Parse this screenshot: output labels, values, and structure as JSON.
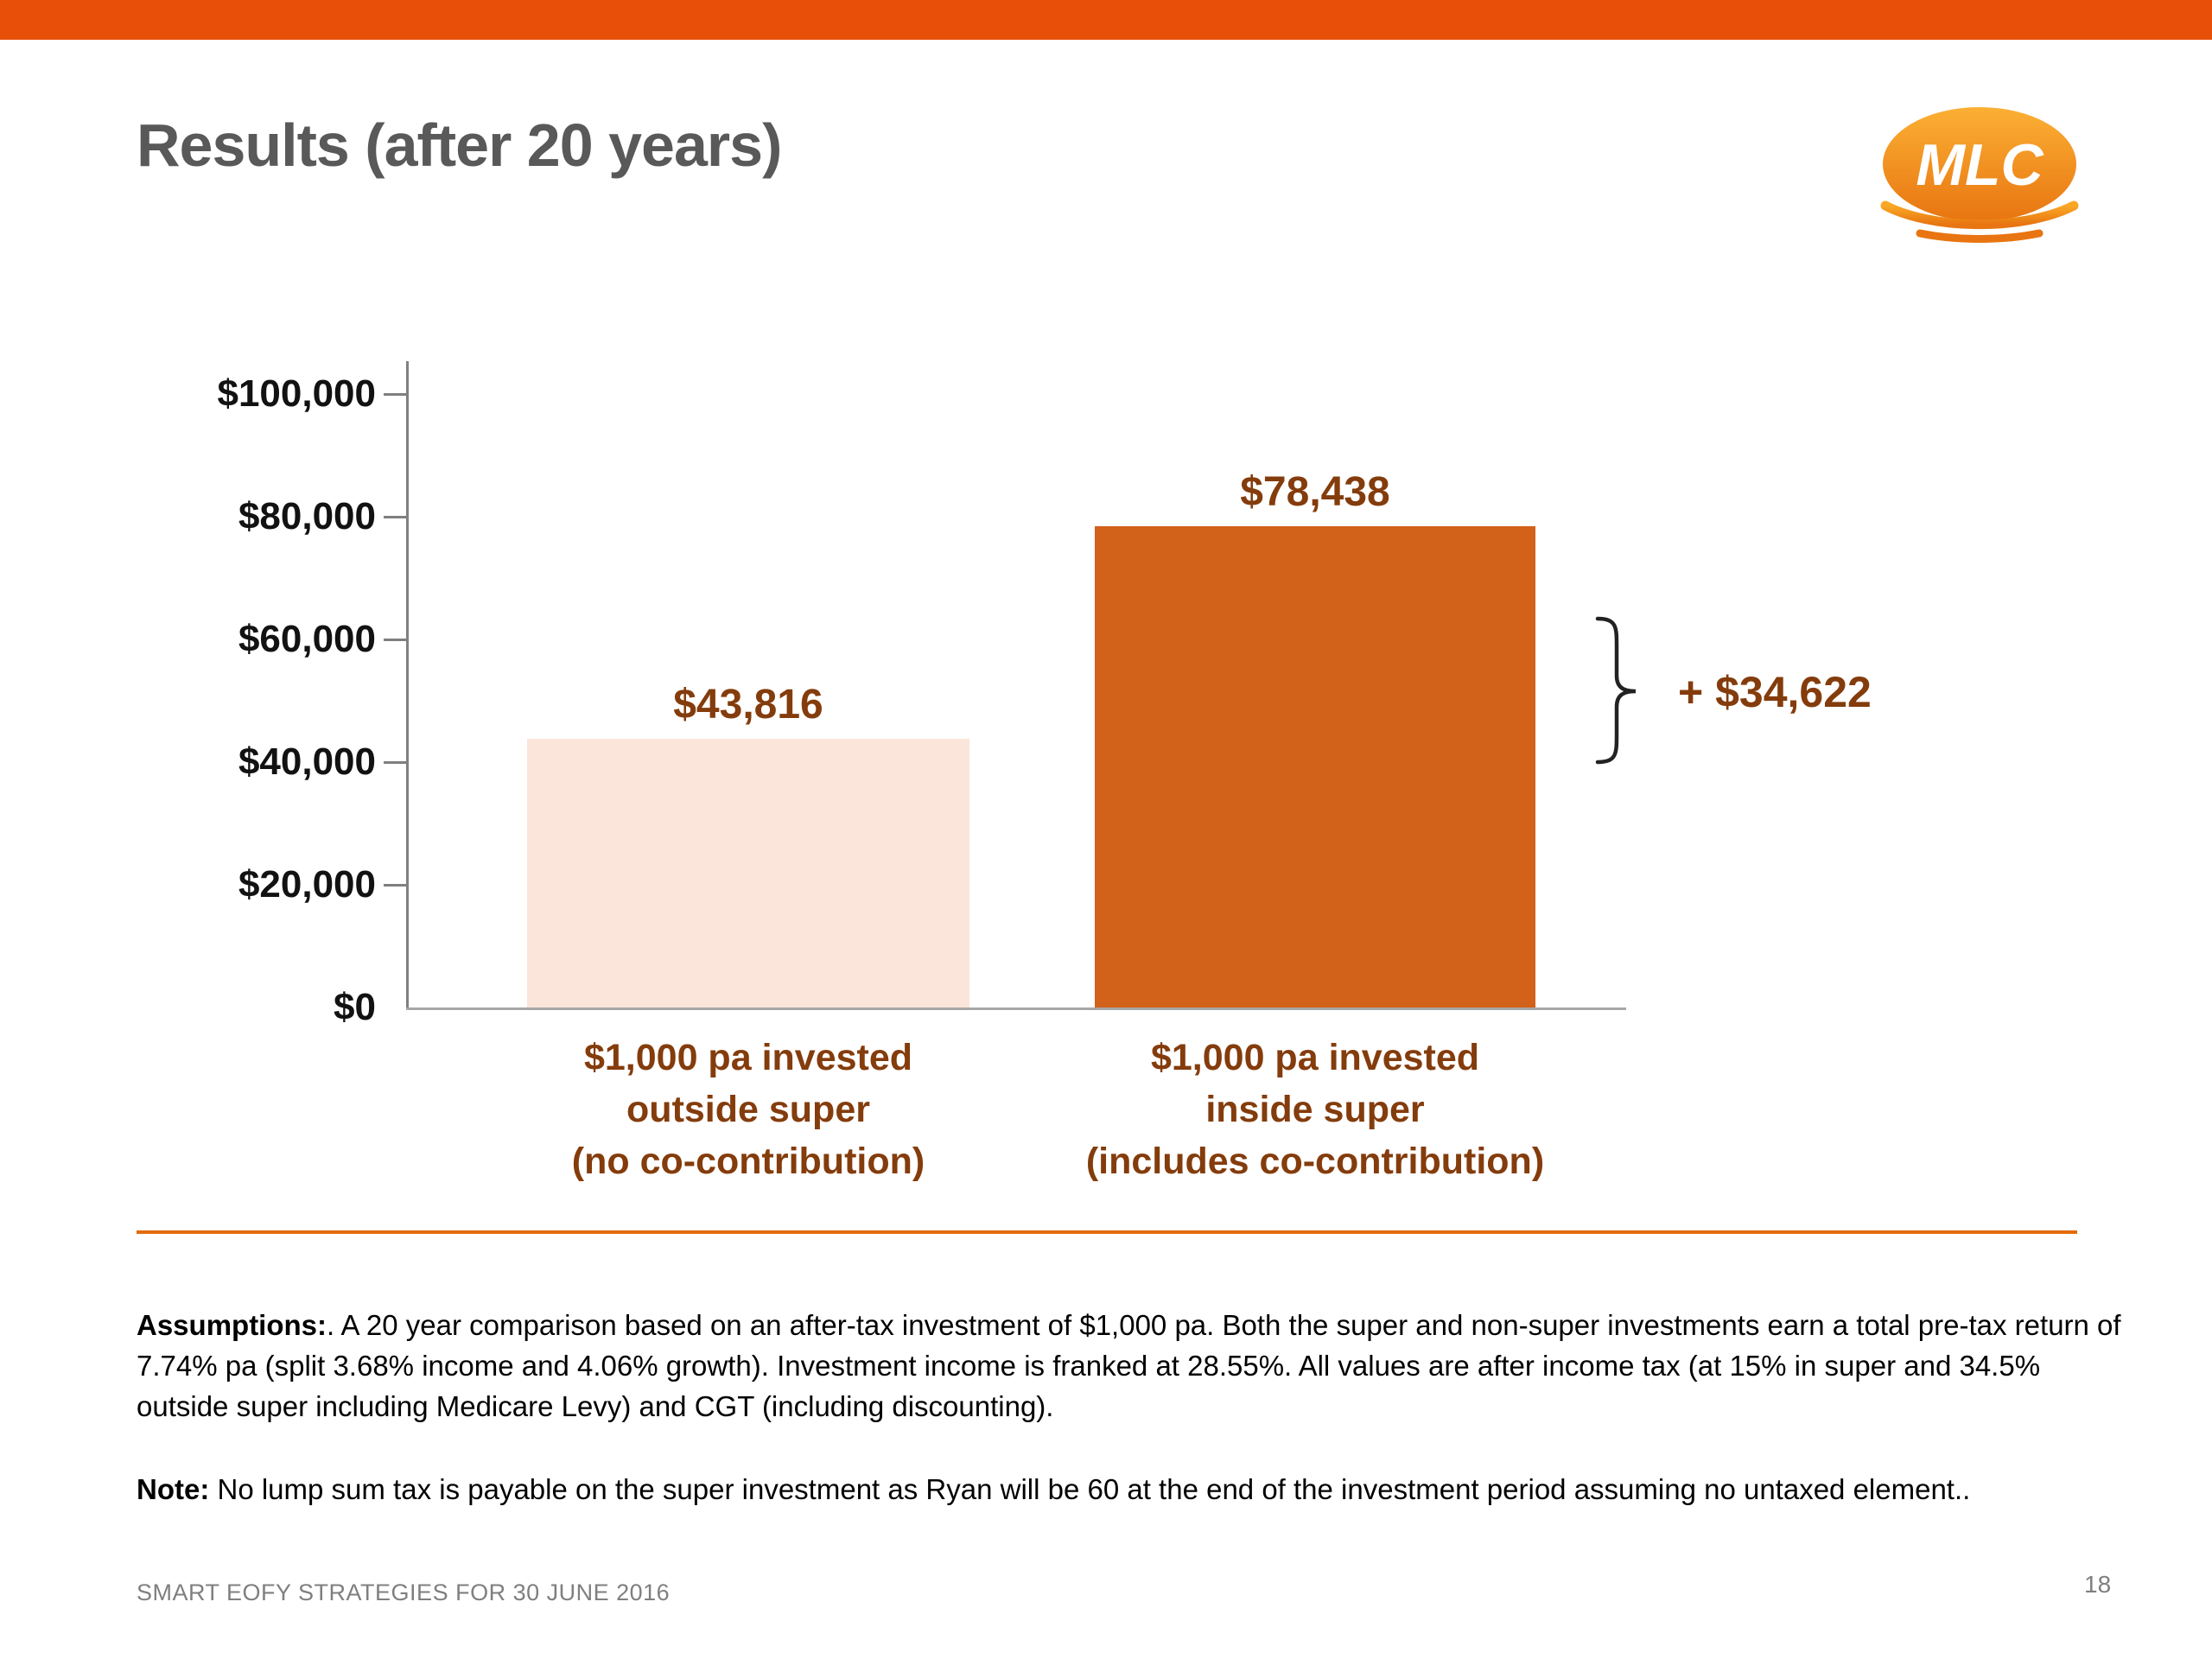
{
  "slide": {
    "title": "Results (after 20 years)",
    "logo": {
      "text": "MLC"
    },
    "colors": {
      "top_bar": "#E8500A",
      "divider": "#E36C0A",
      "label_brown": "#843C0C",
      "title_gray": "#595959"
    },
    "assumptions": {
      "label": "Assumptions:",
      "body": ". A 20 year comparison based on an after-tax investment of $1,000 pa. Both the super and non-super investments earn a total pre-tax return of 7.74% pa (split 3.68% income and 4.06% growth). Investment income is franked at 28.55%. All values are after income tax (at 15% in super and 34.5% outside super including Medicare Levy) and CGT (including discounting)."
    },
    "note": {
      "label": "Note:",
      "body": " No lump sum tax is payable on the super investment as Ryan will be 60 at the end of the investment period assuming no untaxed element.."
    },
    "footer": {
      "left": "SMART EOFY STRATEGIES FOR 30 JUNE 2016",
      "page": "18"
    }
  },
  "chart_data": {
    "type": "bar",
    "title": "Results (after 20 years)",
    "categories": [
      {
        "lines": [
          "$1,000 pa invested",
          "outside super",
          "(no co-contribution)"
        ]
      },
      {
        "lines": [
          "$1,000 pa invested",
          "inside super",
          "(includes co-contribution)"
        ]
      }
    ],
    "values": [
      43816,
      78438
    ],
    "value_labels": [
      "$43,816",
      "$78,438"
    ],
    "bar_colors": [
      "#FBE5DB",
      "#D2611A"
    ],
    "xlabel": "",
    "ylabel": "",
    "ylim": [
      0,
      100000
    ],
    "yticks": [
      "$100,000",
      "$80,000",
      "$60,000",
      "$40,000",
      "$20,000",
      "$0"
    ],
    "grid": false,
    "legend": "none",
    "annotation": {
      "text": "+ $34,622",
      "difference": 34622
    }
  }
}
